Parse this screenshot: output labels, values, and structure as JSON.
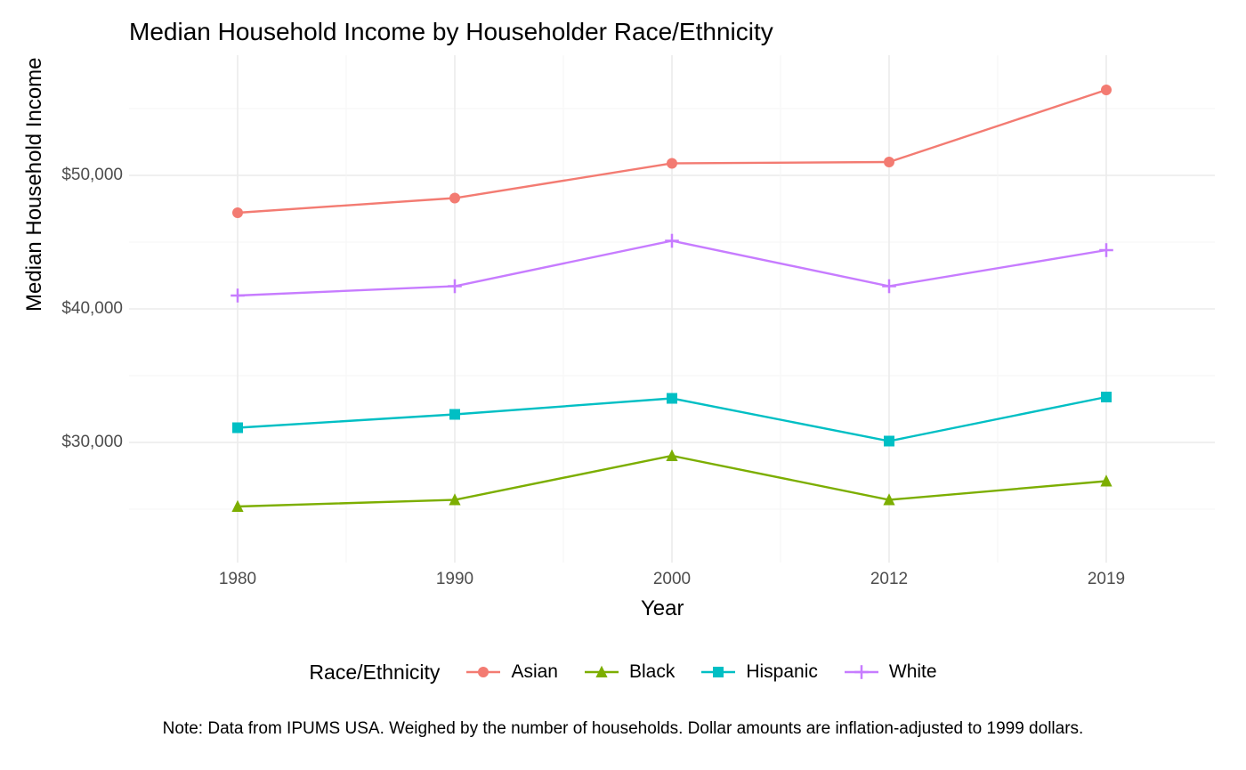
{
  "chart": {
    "type": "line",
    "title": "Median Household Income by Householder Race/Ethnicity",
    "title_fontsize": 28,
    "background_color": "#ffffff",
    "panel_background": "#ffffff",
    "grid_major_color": "#ebebeb",
    "grid_minor_color": "#f5f5f5",
    "tick_color": "#4d4d4d",
    "tick_fontsize": 19,
    "axis_title_fontsize": 24,
    "line_width": 2.4,
    "marker_size": 6,
    "x": {
      "label": "Year",
      "categories": [
        "1980",
        "1990",
        "2000",
        "2012",
        "2019"
      ],
      "positions": [
        0,
        1,
        2,
        3,
        4
      ]
    },
    "y": {
      "label": "Median Household Income",
      "min": 21000,
      "max": 59000,
      "ticks": [
        30000,
        40000,
        50000
      ],
      "tick_labels": [
        "$30,000",
        "$40,000",
        "$50,000"
      ],
      "minor_ticks": [
        25000,
        35000,
        45000,
        55000
      ]
    },
    "series": [
      {
        "name": "Asian",
        "color": "#f37b72",
        "marker": "circle",
        "values": [
          47200,
          48300,
          50900,
          51000,
          56400
        ]
      },
      {
        "name": "Black",
        "color": "#7cae00",
        "marker": "triangle",
        "values": [
          25200,
          25700,
          29000,
          25700,
          27100
        ]
      },
      {
        "name": "Hispanic",
        "color": "#00bfc4",
        "marker": "square",
        "values": [
          31100,
          32100,
          33300,
          30100,
          33400
        ]
      },
      {
        "name": "White",
        "color": "#c77cff",
        "marker": "plus",
        "values": [
          41000,
          41700,
          45100,
          41700,
          44400
        ]
      }
    ],
    "legend": {
      "title": "Race/Ethnicity",
      "position": "bottom",
      "title_fontsize": 23,
      "item_fontsize": 21
    },
    "note": "Note: Data from IPUMS USA. Weighed by the number of households. Dollar amounts are inflation-adjusted to 1999 dollars.",
    "note_fontsize": 19
  }
}
